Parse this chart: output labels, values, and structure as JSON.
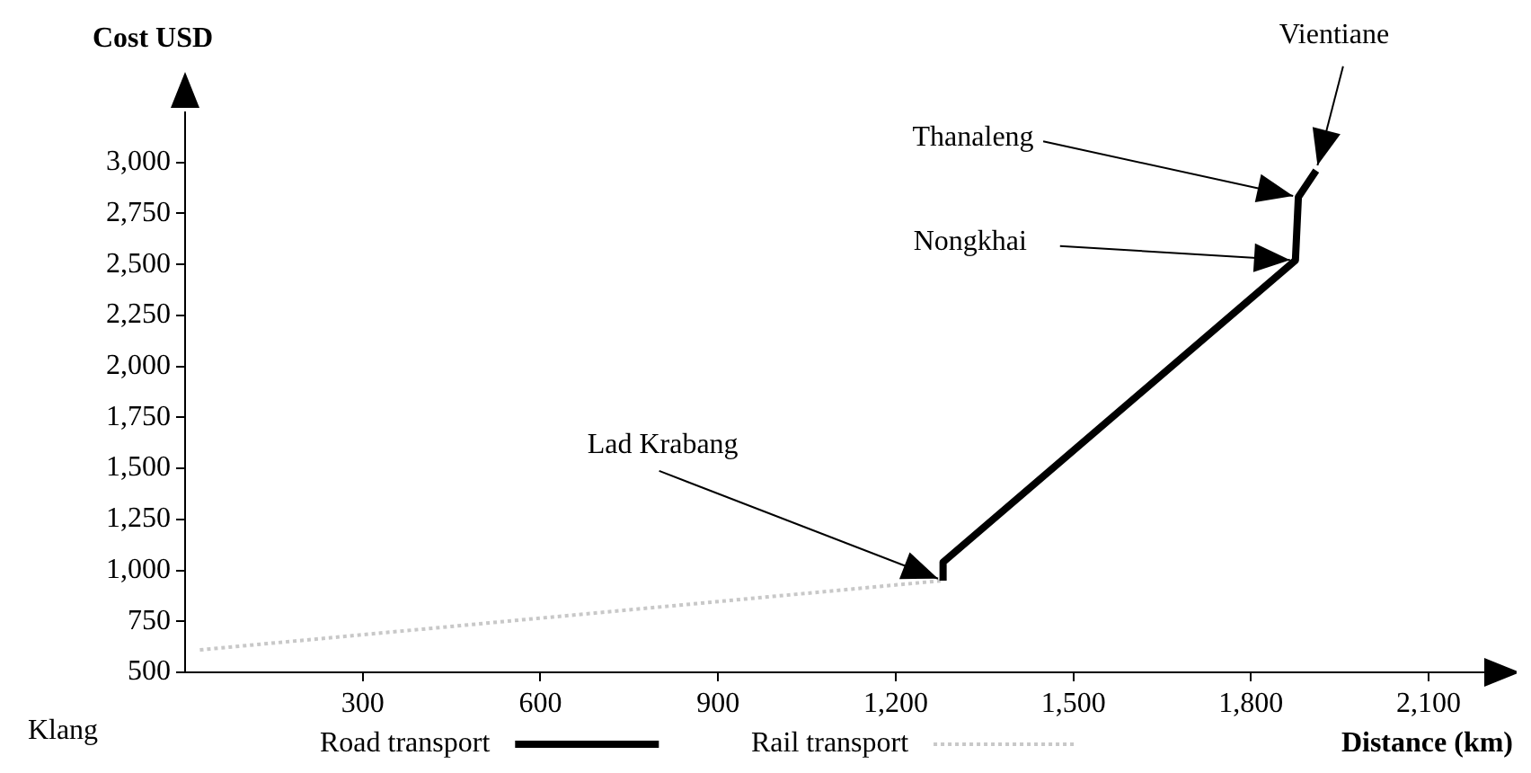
{
  "chart_data": {
    "type": "line",
    "xlabel": "Distance (km)",
    "ylabel": "Cost USD",
    "xlim": [
      0,
      2200
    ],
    "ylim": [
      500,
      3250
    ],
    "xticks": [
      300,
      600,
      900,
      {
        "value": 1200,
        "label": "1,200"
      },
      {
        "value": 1500,
        "label": "1,500"
      },
      {
        "value": 1800,
        "label": "1,800"
      },
      {
        "value": 2100,
        "label": "2,100"
      }
    ],
    "yticks": [
      500,
      750,
      {
        "value": 1000,
        "label": "1,000"
      },
      {
        "value": 1250,
        "label": "1,250"
      },
      {
        "value": 1500,
        "label": "1,500"
      },
      {
        "value": 1750,
        "label": "1,750"
      },
      {
        "value": 2000,
        "label": "2,000"
      },
      {
        "value": 2250,
        "label": "2,250"
      },
      {
        "value": 2500,
        "label": "2,500"
      },
      {
        "value": 2750,
        "label": "2,750"
      },
      {
        "value": 3000,
        "label": "3,000"
      }
    ],
    "series": [
      {
        "name": "Road transport",
        "color": "#000000",
        "line_style": "solid",
        "x": [
          1280,
          1280,
          1875,
          1880,
          1910
        ],
        "values": [
          950,
          1040,
          2520,
          2830,
          2960
        ]
      },
      {
        "name": "Rail transport",
        "color": "#c8c8c8",
        "line_style": "dotted",
        "x": [
          25,
          1280
        ],
        "values": [
          610,
          950
        ]
      }
    ],
    "annotations": [
      "Klang",
      {
        "text": "Lad Krabang",
        "x": 1280,
        "y": 950
      },
      {
        "text": "Nongkhai",
        "x": 1875,
        "y": 2520
      },
      {
        "text": "Thanaleng",
        "x": 1880,
        "y": 2830
      },
      {
        "text": "Vientiane",
        "x": 1910,
        "y": 2960
      }
    ],
    "grid": false,
    "legend": "bottom",
    "marker": "none"
  }
}
